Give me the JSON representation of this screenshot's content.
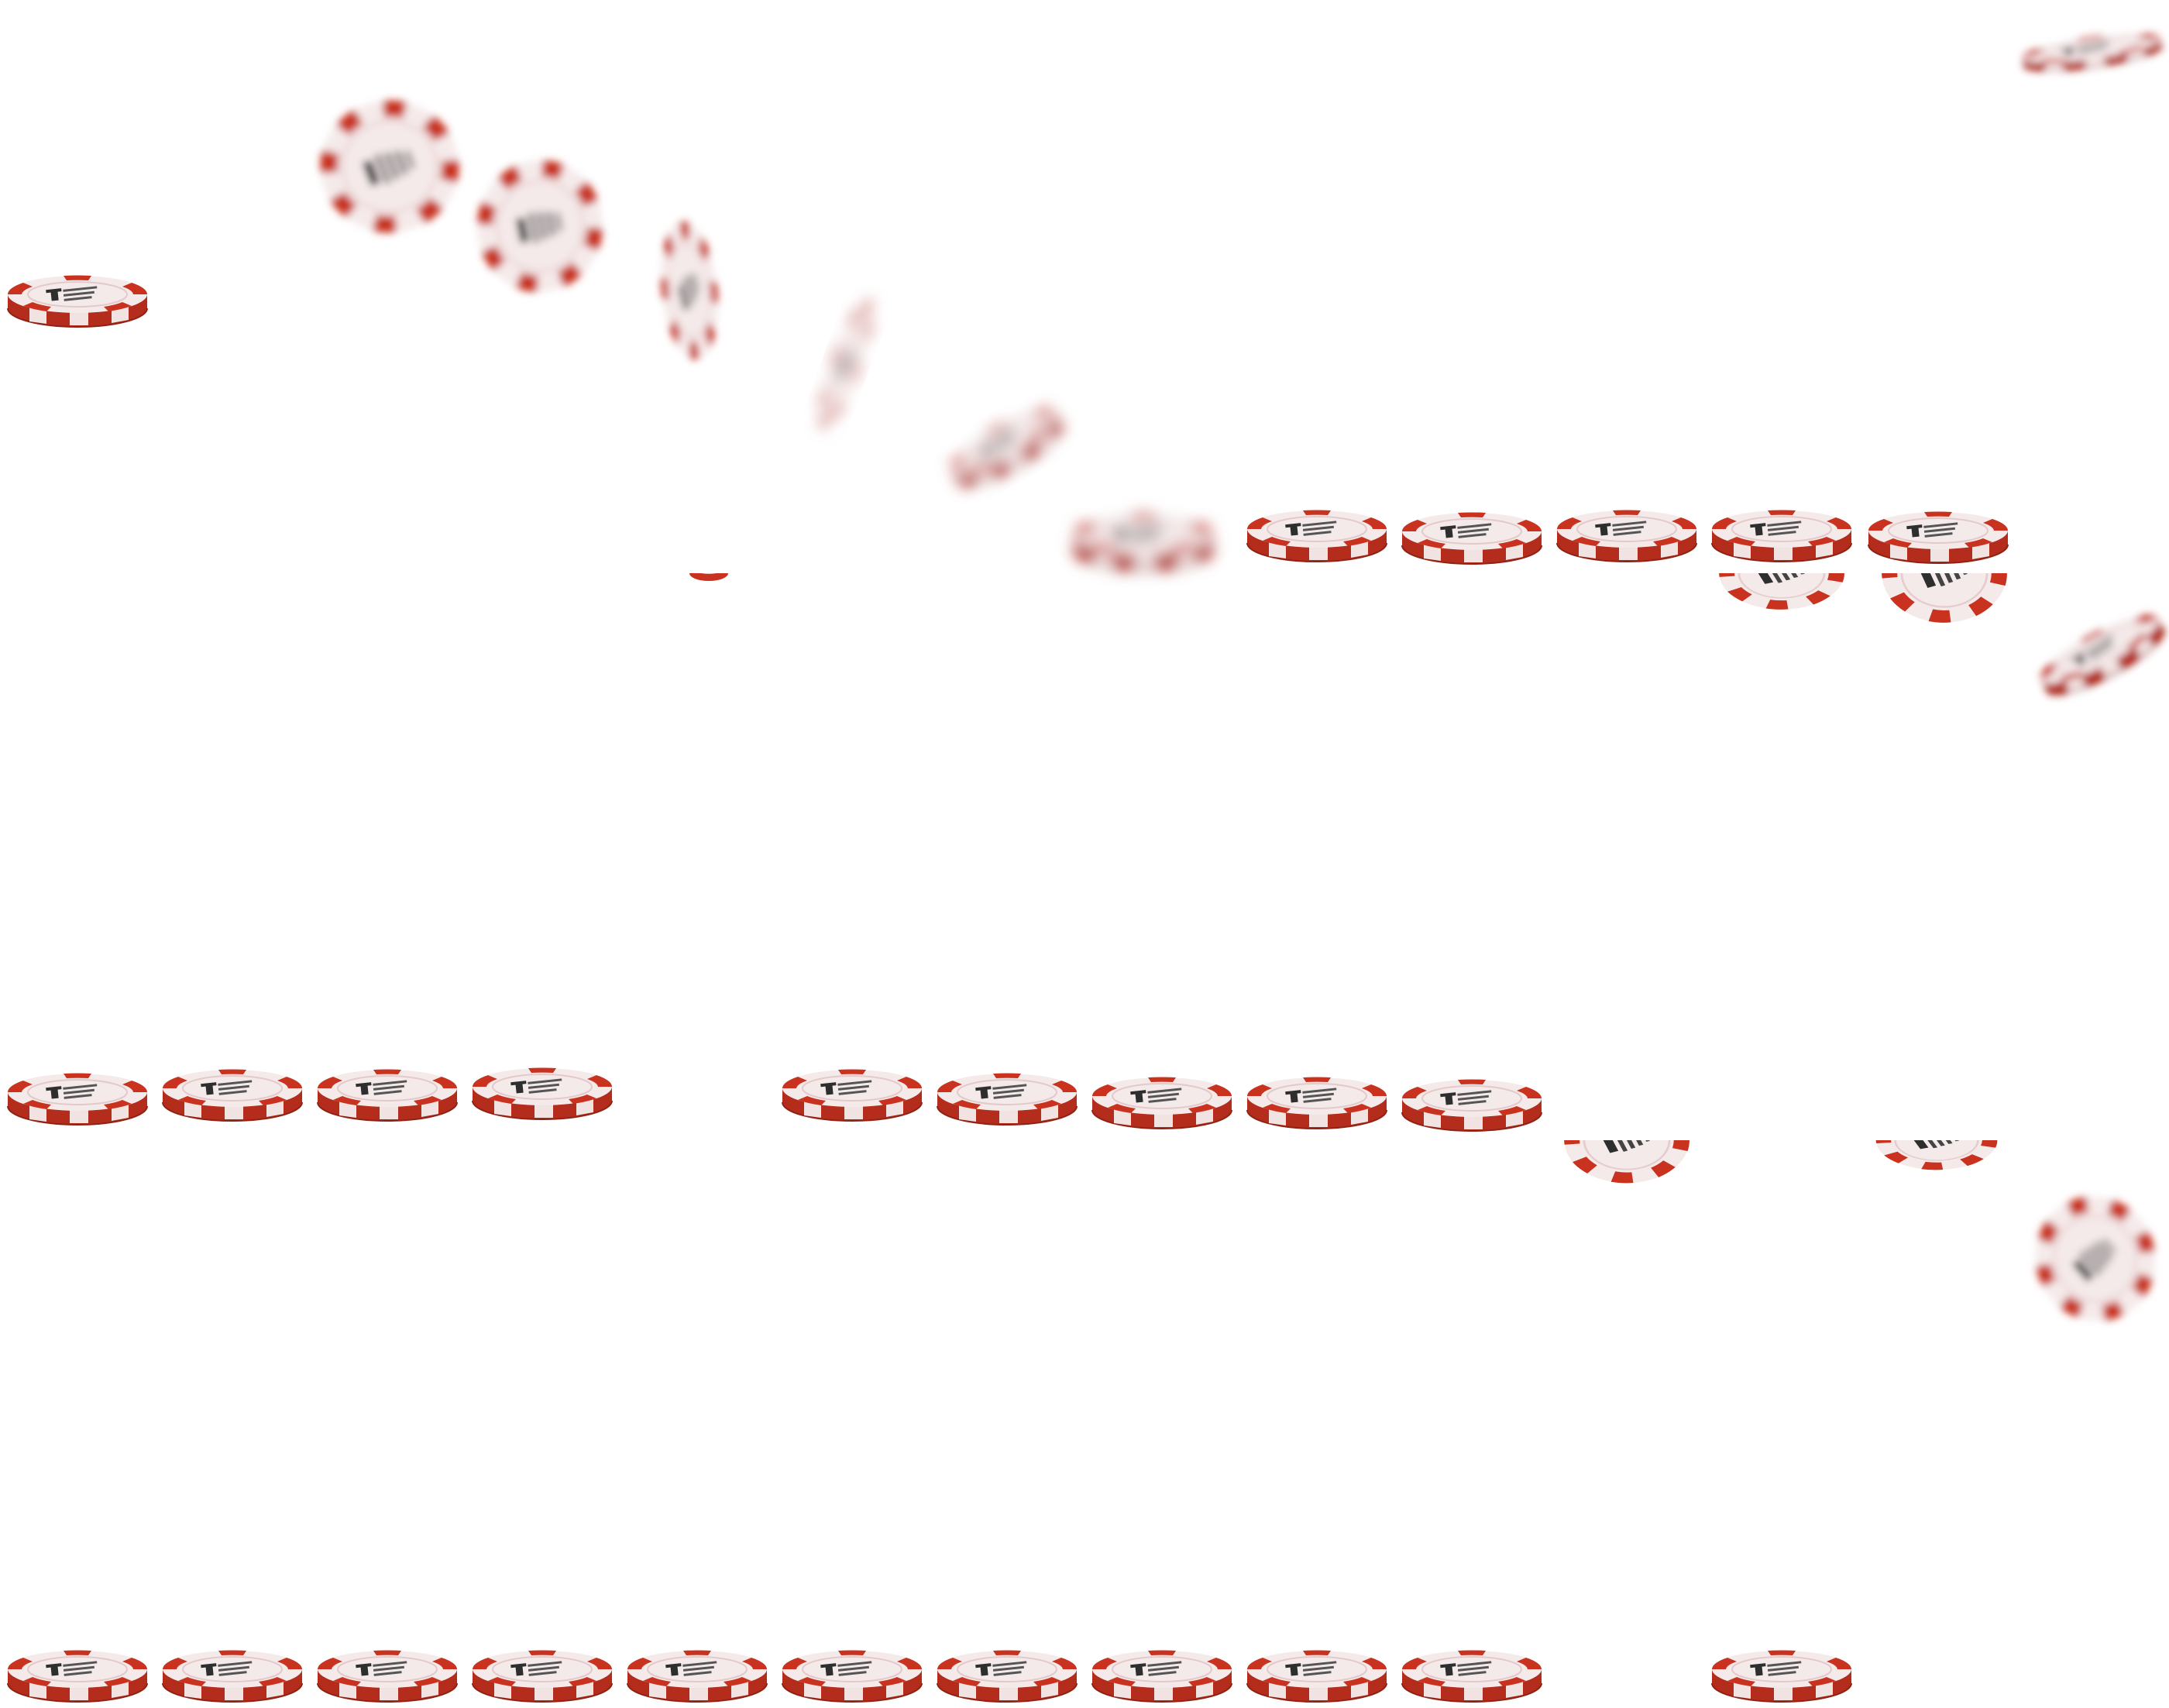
{
  "sprite_sheet": {
    "background": "#ffffff",
    "chip_colors": {
      "primary_red": "#c8321f",
      "dark_red": "#9b2516",
      "face_white": "#f7eeee",
      "face_shade": "#e9d3d3",
      "logo_ink": "#3a3a3a"
    },
    "icon": "poker-chip-icon",
    "logo_lines": [
      "",
      ""
    ]
  }
}
